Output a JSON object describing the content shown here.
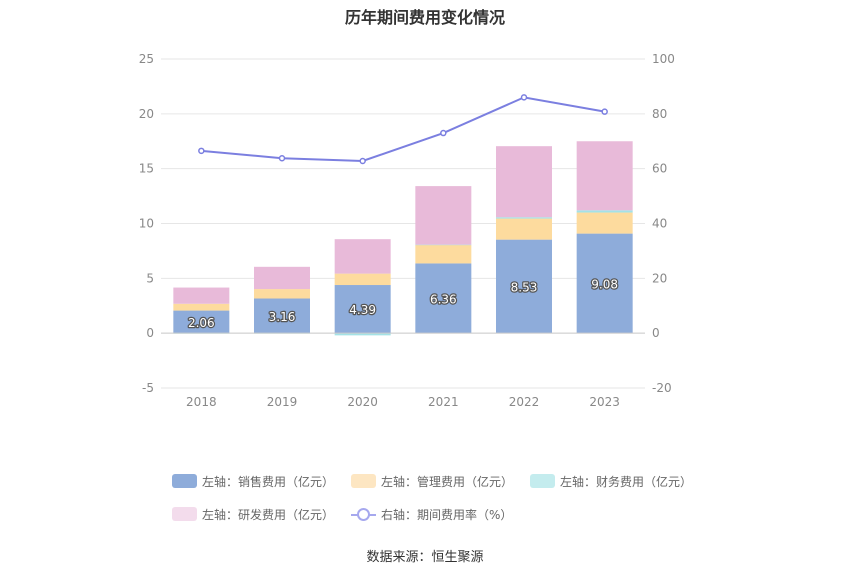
{
  "chart_data": {
    "type": "bar",
    "title": "历年期间费用变化情况",
    "categories": [
      "2018",
      "2019",
      "2020",
      "2021",
      "2022",
      "2023"
    ],
    "series": [
      {
        "name": "左轴：销售费用（亿元）",
        "axis": "left",
        "stack": "expense",
        "color": "#8eacda",
        "values": [
          2.06,
          3.16,
          4.39,
          6.36,
          8.53,
          9.08
        ]
      },
      {
        "name": "左轴：管理费用（亿元）",
        "axis": "left",
        "stack": "expense",
        "color": "#fddb9e",
        "values": [
          0.62,
          0.86,
          1.04,
          1.69,
          1.92,
          1.92
        ]
      },
      {
        "name": "左轴：财务费用（亿元）",
        "axis": "left",
        "stack": "expense",
        "color": "#a4e2e6",
        "values": [
          -0.05,
          -0.04,
          -0.2,
          0.02,
          0.12,
          0.2
        ]
      },
      {
        "name": "左轴：研发费用（亿元）",
        "axis": "left",
        "stack": "expense",
        "color": "#e8bad9",
        "values": [
          1.48,
          2.03,
          3.14,
          5.34,
          6.48,
          6.3
        ]
      },
      {
        "name": "右轴：期间费用率（%）",
        "axis": "right",
        "type": "line",
        "color": "#7b7fe0",
        "values": [
          66.5,
          63.8,
          62.8,
          73.0,
          86.0,
          80.8
        ]
      }
    ],
    "data_labels": [
      "2.06",
      "3.16",
      "4.39",
      "6.36",
      "8.53",
      "9.08"
    ],
    "y_left": {
      "min": -5,
      "max": 25,
      "ticks": [
        "-5",
        "0",
        "5",
        "10",
        "15",
        "20",
        "25"
      ]
    },
    "y_right": {
      "min": -20,
      "max": 100,
      "ticks": [
        "-20",
        "0",
        "20",
        "40",
        "60",
        "80",
        "100"
      ]
    },
    "grid": true,
    "legend_position": "bottom"
  },
  "source": "数据来源：恒生聚源"
}
